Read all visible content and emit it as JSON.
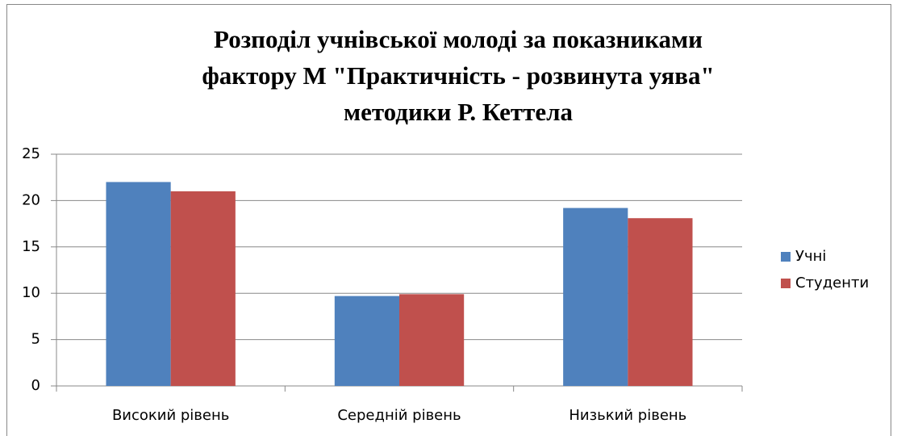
{
  "chart_data": {
    "type": "bar",
    "title": [
      "Розподіл учнівської молоді за показниками",
      "фактору М \"Практичність - розвинута уява\"",
      "методики Р. Кеттела"
    ],
    "categories": [
      "Високий рівень",
      "Середній рівень",
      "Низький рівень"
    ],
    "series": [
      {
        "name": "Учні",
        "color": "#4f81bd",
        "values": [
          22,
          9.7,
          19.2
        ]
      },
      {
        "name": "Студенти",
        "color": "#c0504d",
        "values": [
          21,
          9.9,
          18.1
        ]
      }
    ],
    "ylim": [
      0,
      25
    ],
    "yticks": [
      0,
      5,
      10,
      15,
      20,
      25
    ],
    "grid": true,
    "legend": "right"
  }
}
